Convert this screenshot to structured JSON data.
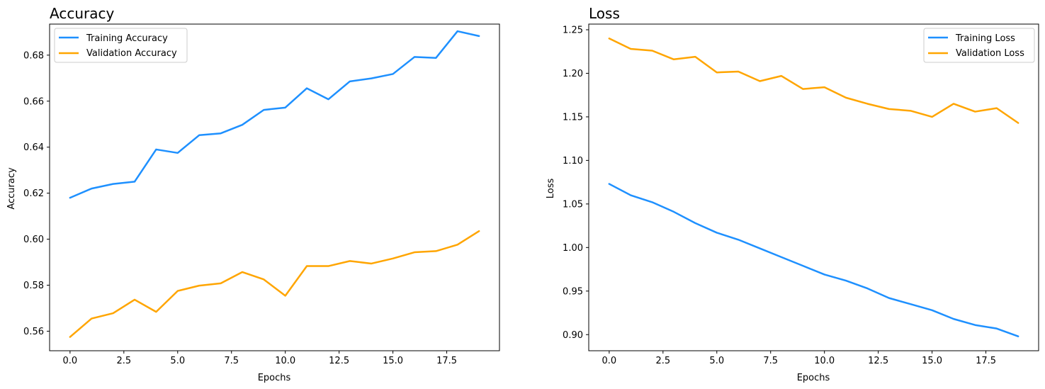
{
  "chart_data": [
    {
      "type": "line",
      "title": "Accuracy",
      "xlabel": "Epochs",
      "ylabel": "Accuracy",
      "xlim": [
        -0.95,
        19.95
      ],
      "ylim": [
        0.5515,
        0.6935
      ],
      "xticks": [
        0,
        2.5,
        5,
        7.5,
        10,
        12.5,
        15,
        17.5
      ],
      "xtick_labels": [
        "0.0",
        "2.5",
        "5.0",
        "7.5",
        "10.0",
        "12.5",
        "15.0",
        "17.5"
      ],
      "yticks": [
        0.56,
        0.58,
        0.6,
        0.62,
        0.64,
        0.66,
        0.68
      ],
      "ytick_labels": [
        "0.56",
        "0.58",
        "0.60",
        "0.62",
        "0.64",
        "0.66",
        "0.68"
      ],
      "legend_position": "top-left",
      "grid": false,
      "x": [
        0,
        1,
        2,
        3,
        4,
        5,
        6,
        7,
        8,
        9,
        10,
        11,
        12,
        13,
        14,
        15,
        16,
        17,
        18,
        19
      ],
      "series": [
        {
          "name": "Training Accuracy",
          "color": "#1e90ff",
          "values": [
            0.618,
            0.622,
            0.624,
            0.625,
            0.639,
            0.6375,
            0.6452,
            0.646,
            0.6497,
            0.6562,
            0.6572,
            0.6656,
            0.6608,
            0.6686,
            0.6699,
            0.6718,
            0.6792,
            0.6788,
            0.6904,
            0.6883
          ]
        },
        {
          "name": "Validation Accuracy",
          "color": "#ffa500",
          "values": [
            0.5575,
            0.5655,
            0.5678,
            0.5737,
            0.5684,
            0.5775,
            0.5798,
            0.5808,
            0.5857,
            0.5825,
            0.5754,
            0.5883,
            0.5883,
            0.5905,
            0.5894,
            0.5916,
            0.5943,
            0.5948,
            0.5976,
            0.6035
          ]
        }
      ]
    },
    {
      "type": "line",
      "title": "Loss",
      "xlabel": "Epochs",
      "ylabel": "Loss",
      "xlim": [
        -0.95,
        19.95
      ],
      "ylim": [
        0.8815,
        1.2565
      ],
      "xticks": [
        0,
        2.5,
        5,
        7.5,
        10,
        12.5,
        15,
        17.5
      ],
      "xtick_labels": [
        "0.0",
        "2.5",
        "5.0",
        "7.5",
        "10.0",
        "12.5",
        "15.0",
        "17.5"
      ],
      "yticks": [
        0.9,
        0.95,
        1.0,
        1.05,
        1.1,
        1.15,
        1.2,
        1.25
      ],
      "ytick_labels": [
        "0.90",
        "0.95",
        "1.00",
        "1.05",
        "1.10",
        "1.15",
        "1.20",
        "1.25"
      ],
      "legend_position": "top-right",
      "grid": false,
      "x": [
        0,
        1,
        2,
        3,
        4,
        5,
        6,
        7,
        8,
        9,
        10,
        11,
        12,
        13,
        14,
        15,
        16,
        17,
        18,
        19
      ],
      "series": [
        {
          "name": "Training Loss",
          "color": "#1e90ff",
          "values": [
            1.073,
            1.06,
            1.052,
            1.041,
            1.028,
            1.017,
            1.009,
            0.999,
            0.989,
            0.979,
            0.969,
            0.962,
            0.953,
            0.942,
            0.935,
            0.928,
            0.918,
            0.911,
            0.907,
            0.898
          ]
        },
        {
          "name": "Validation Loss",
          "color": "#ffa500",
          "values": [
            1.24,
            1.228,
            1.226,
            1.216,
            1.219,
            1.201,
            1.202,
            1.191,
            1.197,
            1.182,
            1.184,
            1.172,
            1.165,
            1.159,
            1.157,
            1.15,
            1.165,
            1.156,
            1.16,
            1.143
          ]
        }
      ]
    }
  ]
}
